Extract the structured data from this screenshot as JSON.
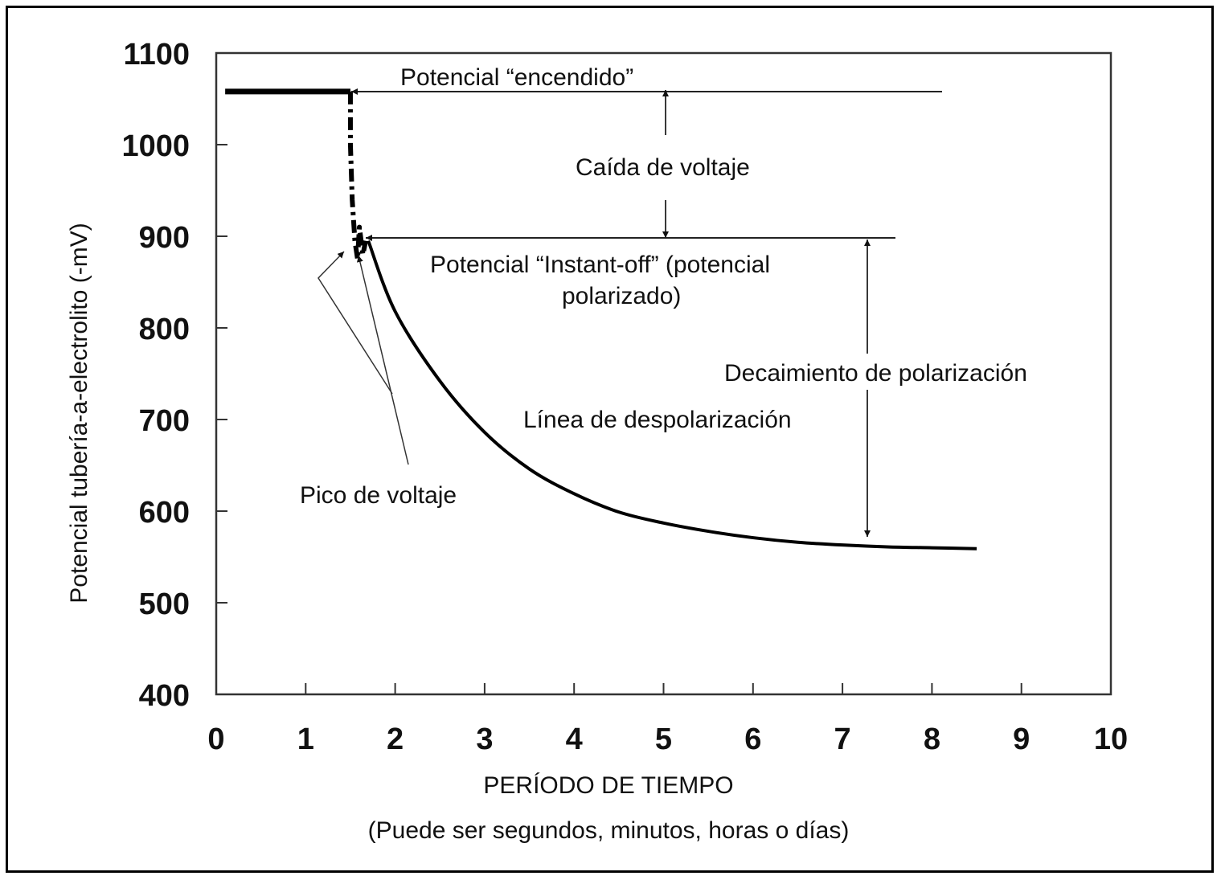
{
  "chart_data": {
    "type": "line",
    "title": "",
    "xlabel": "PERÍODO DE TIEMPO",
    "xlabel_note": "(Puede ser segundos, minutos, horas o días)",
    "ylabel": "Potencial tubería-a-electrolito (-mV)",
    "xlim": [
      0,
      10
    ],
    "ylim": [
      400,
      1100
    ],
    "x_ticks": [
      "0",
      "1",
      "2",
      "3",
      "4",
      "5",
      "6",
      "7",
      "8",
      "9",
      "10"
    ],
    "y_ticks": [
      "400",
      "500",
      "600",
      "700",
      "800",
      "900",
      "1000",
      "1100"
    ],
    "grid": false,
    "series": [
      {
        "style": "solid-thick",
        "x": [
          0.1,
          1.5
        ],
        "y": [
          1058,
          1058
        ]
      },
      {
        "style": "dash-dot",
        "x": [
          1.5,
          1.5,
          1.52,
          1.55,
          1.58,
          1.6,
          1.62,
          1.64,
          1.67
        ],
        "y": [
          1058,
          1000,
          940,
          895,
          875,
          910,
          895,
          880,
          895
        ]
      },
      {
        "style": "solid",
        "x": [
          1.7,
          2.0,
          2.5,
          3.0,
          3.5,
          4.0,
          4.5,
          5.0,
          5.5,
          6.0,
          6.5,
          7.0,
          7.5,
          8.0,
          8.5
        ],
        "y": [
          895,
          818,
          742,
          686,
          646,
          619,
          599,
          587,
          578,
          571,
          566,
          563,
          561,
          560,
          559
        ]
      }
    ],
    "annotations": {
      "on_potential": "Potencial “encendido”",
      "voltage_drop": "Caída de voltaje",
      "instant_off_line1": "Potencial “Instant-off” (potencial",
      "instant_off_line2": "polarizado)",
      "polarization_decay": "Decaimiento de polarización",
      "depolarization_line": "Línea de despolarización",
      "voltage_spike": "Pico de voltaje"
    }
  }
}
